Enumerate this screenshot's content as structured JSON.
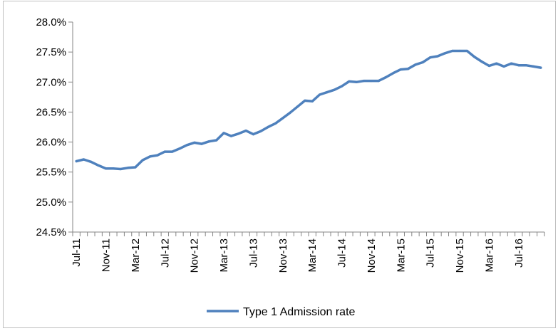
{
  "chart_data": {
    "type": "line",
    "title": "",
    "xlabel": "",
    "ylabel": "",
    "ylim": [
      24.5,
      28.0
    ],
    "y_ticks": [
      24.5,
      25.0,
      25.5,
      26.0,
      26.5,
      27.0,
      27.5,
      28.0
    ],
    "y_tick_labels": [
      "24.5%",
      "25.0%",
      "25.5%",
      "26.0%",
      "26.5%",
      "27.0%",
      "27.5%",
      "28.0%"
    ],
    "x_tick_labels": [
      "Jul-11",
      "Nov-11",
      "Mar-12",
      "Jul-12",
      "Nov-12",
      "Mar-13",
      "Jul-13",
      "Nov-13",
      "Mar-14",
      "Jul-14",
      "Nov-14",
      "Mar-15",
      "Jul-15",
      "Nov-15",
      "Mar-16",
      "Jul-16"
    ],
    "x_tick_every": 4,
    "grid": false,
    "legend_position": "bottom",
    "colors": {
      "series": "#4f81bd",
      "axis": "#868686"
    },
    "series": [
      {
        "name": "Type 1 Admission rate",
        "values": [
          25.68,
          25.71,
          25.67,
          25.61,
          25.56,
          25.56,
          25.55,
          25.57,
          25.58,
          25.7,
          25.76,
          25.78,
          25.84,
          25.84,
          25.89,
          25.95,
          25.99,
          25.97,
          26.01,
          26.03,
          26.15,
          26.1,
          26.14,
          26.19,
          26.13,
          26.18,
          26.25,
          26.31,
          26.4,
          26.49,
          26.59,
          26.69,
          26.68,
          26.79,
          26.83,
          26.87,
          26.93,
          27.01,
          27.0,
          27.02,
          27.02,
          27.02,
          27.08,
          27.15,
          27.21,
          27.22,
          27.29,
          27.33,
          27.41,
          27.43,
          27.48,
          27.52,
          27.52,
          27.52,
          27.42,
          27.34,
          27.27,
          27.31,
          27.26,
          27.31,
          27.28,
          27.28,
          27.26,
          27.24
        ]
      }
    ]
  }
}
